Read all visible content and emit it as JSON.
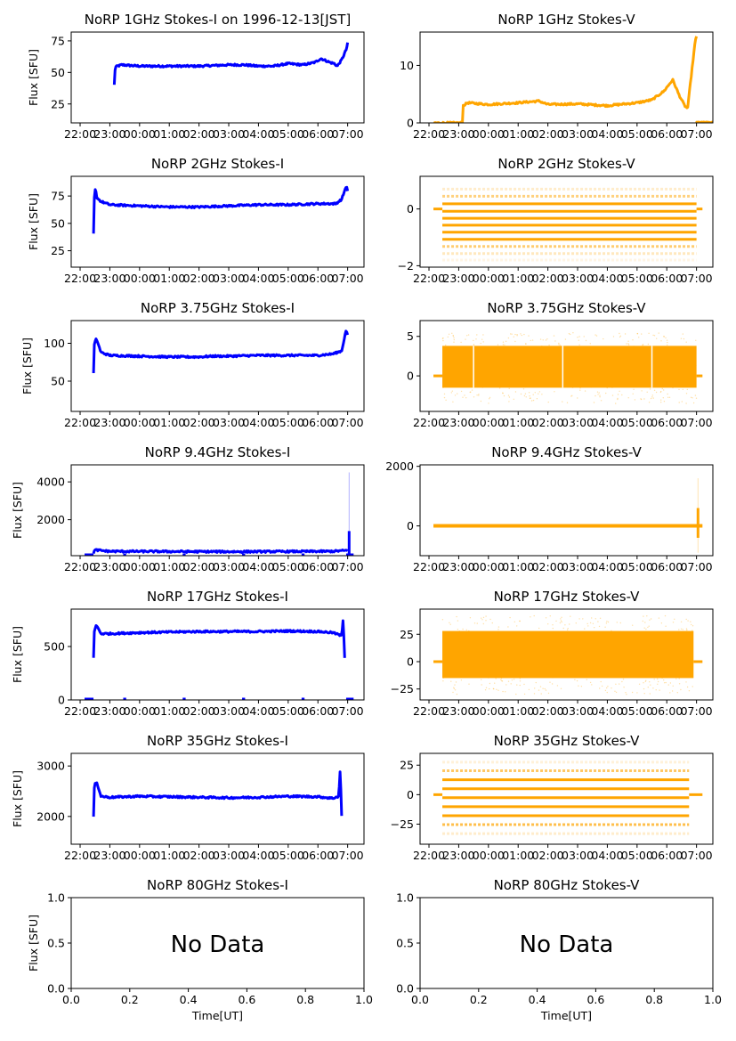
{
  "figure": {
    "background": "#ffffff",
    "colors": {
      "stokes_i": "#0000ff",
      "stokes_v": "#ffa500",
      "axis": "#000000"
    }
  },
  "chart_data": [
    {
      "id": "1ghz-i",
      "type": "scatter",
      "title": "NoRP 1GHz Stokes-I on 1996-12-13[JST]",
      "ylabel": "Flux [SFU]",
      "xlabel": "",
      "ylim": [
        10,
        82
      ],
      "yticks": [
        25,
        50,
        75
      ],
      "xticks": [
        "22:00",
        "23:00",
        "00:00",
        "01:00",
        "02:00",
        "03:00",
        "04:00",
        "05:00",
        "06:00",
        "07:00"
      ],
      "xrange_hours": [
        -0.3,
        9.55
      ],
      "series_color": "stokes_i",
      "series": [
        {
          "name": "Stokes-I",
          "x": [
            1.15,
            1.18,
            1.25,
            1.4,
            2,
            3,
            4,
            5,
            5.5,
            6,
            6.5,
            7,
            7.5,
            7.9,
            8.1,
            8.4,
            8.55,
            8.65,
            8.8,
            8.95,
            9.0
          ],
          "y": [
            40,
            54,
            55,
            56,
            55,
            55,
            55,
            56,
            56,
            55,
            55,
            57,
            56,
            58,
            61,
            58,
            57,
            55,
            60,
            68,
            73
          ]
        }
      ]
    },
    {
      "id": "1ghz-v",
      "type": "scatter",
      "title": "NoRP 1GHz Stokes-V",
      "ylabel": "",
      "xlabel": "",
      "ylim": [
        0,
        15.8
      ],
      "yticks": [
        0,
        10
      ],
      "xticks": [
        "22:00",
        "23:00",
        "00:00",
        "01:00",
        "02:00",
        "03:00",
        "04:00",
        "05:00",
        "06:00",
        "07:00"
      ],
      "xrange_hours": [
        -0.3,
        9.55
      ],
      "series_color": "stokes_v",
      "series": [
        {
          "name": "Stokes-V",
          "x": [
            0.15,
            1.15,
            1.15,
            1.3,
            2,
            3,
            3.7,
            4,
            5,
            6,
            7,
            7.5,
            7.9,
            8.2,
            8.4,
            8.6,
            8.7,
            8.95,
            9.0
          ],
          "y": [
            0,
            0,
            3,
            3.5,
            3.2,
            3.5,
            3.8,
            3.2,
            3.3,
            3,
            3.5,
            4,
            5.5,
            7.5,
            5,
            3,
            2.5,
            14,
            15
          ]
        },
        {
          "name": "Stokes-V-zero",
          "x": [
            9.0,
            9.3,
            9.6,
            9.9,
            10.2
          ],
          "y": [
            0,
            0,
            0,
            0,
            0
          ]
        }
      ]
    },
    {
      "id": "2ghz-i",
      "type": "scatter",
      "title": "NoRP 2GHz Stokes-I",
      "ylabel": "Flux [SFU]",
      "xlabel": "",
      "ylim": [
        10,
        93
      ],
      "yticks": [
        25,
        50,
        75
      ],
      "xticks": [
        "22:00",
        "23:00",
        "00:00",
        "01:00",
        "02:00",
        "03:00",
        "04:00",
        "05:00",
        "06:00",
        "07:00"
      ],
      "xrange_hours": [
        -0.3,
        9.55
      ],
      "series_color": "stokes_i",
      "series": [
        {
          "name": "Stokes-I",
          "x": [
            0.45,
            0.48,
            0.52,
            0.55,
            0.7,
            1,
            2,
            3,
            4,
            5,
            6,
            7,
            8,
            8.6,
            8.8,
            8.95,
            9.0
          ],
          "y": [
            40,
            75,
            83,
            74,
            70,
            67,
            66,
            65,
            65,
            66,
            67,
            67,
            68,
            68,
            72,
            84,
            80
          ]
        }
      ]
    },
    {
      "id": "2ghz-v",
      "type": "scatter",
      "title": "NoRP 2GHz Stokes-V",
      "ylabel": "",
      "xlabel": "",
      "ylim": [
        -2.05,
        1.15
      ],
      "yticks": [
        -2,
        0
      ],
      "xticks": [
        "22:00",
        "23:00",
        "00:00",
        "01:00",
        "02:00",
        "03:00",
        "04:00",
        "05:00",
        "06:00",
        "07:00"
      ],
      "xrange_hours": [
        -0.3,
        9.55
      ],
      "series_color": "stokes_v",
      "levels": [
        0.7,
        0.45,
        0.18,
        -0.08,
        -0.33,
        -0.57,
        -0.82,
        -1.07,
        -1.32,
        -1.57,
        -1.8
      ],
      "levels_strength": [
        0.2,
        0.5,
        1,
        1,
        1,
        1,
        1,
        1,
        0.55,
        0.25,
        0.1
      ],
      "data_span_hours": [
        0.45,
        9.0
      ],
      "flat_zero_span": [
        0.15,
        9.2
      ]
    },
    {
      "id": "375ghz-i",
      "type": "scatter",
      "title": "NoRP 3.75GHz Stokes-I",
      "ylabel": "Flux [SFU]",
      "xlabel": "",
      "ylim": [
        10,
        130
      ],
      "yticks": [
        50,
        100
      ],
      "xticks": [
        "22:00",
        "23:00",
        "00:00",
        "01:00",
        "02:00",
        "03:00",
        "04:00",
        "05:00",
        "06:00",
        "07:00"
      ],
      "xrange_hours": [
        -0.3,
        9.55
      ],
      "series_color": "stokes_i",
      "series": [
        {
          "name": "Stokes-I",
          "x": [
            0.45,
            0.48,
            0.55,
            0.7,
            1,
            2,
            3,
            4,
            4.5,
            5,
            6,
            7,
            8,
            8.5,
            8.8,
            8.95,
            9.0
          ],
          "y": [
            60,
            100,
            106,
            88,
            84,
            83,
            82,
            82,
            83,
            83,
            84,
            84,
            84,
            86,
            90,
            118,
            110
          ]
        }
      ]
    },
    {
      "id": "375ghz-v",
      "type": "scatter",
      "title": "NoRP 3.75GHz Stokes-V",
      "ylabel": "",
      "xlabel": "",
      "ylim": [
        -4.5,
        7
      ],
      "yticks": [
        0,
        5
      ],
      "xticks": [
        "22:00",
        "23:00",
        "00:00",
        "01:00",
        "02:00",
        "03:00",
        "04:00",
        "05:00",
        "06:00",
        "07:00"
      ],
      "xrange_hours": [
        -0.3,
        9.55
      ],
      "series_color": "stokes_v",
      "band": {
        "low": -1.5,
        "high": 3.8,
        "scatter_low": -3.5,
        "scatter_high": 5.5
      },
      "data_span_hours": [
        0.45,
        9.0
      ],
      "flat_zero_span": [
        0.15,
        9.2
      ],
      "gaps_hours": [
        1.5,
        4.5,
        7.5
      ]
    },
    {
      "id": "94ghz-i",
      "type": "scatter",
      "title": "NoRP 9.4GHz Stokes-I",
      "ylabel": "Flux [SFU]",
      "xlabel": "",
      "ylim": [
        100,
        4900
      ],
      "yticks": [
        2000,
        4000
      ],
      "xticks": [
        "22:00",
        "23:00",
        "00:00",
        "01:00",
        "02:00",
        "03:00",
        "04:00",
        "05:00",
        "06:00",
        "07:00"
      ],
      "xrange_hours": [
        -0.3,
        9.55
      ],
      "series_color": "stokes_i",
      "series": [
        {
          "name": "Stokes-I",
          "x": [
            0.45,
            0.5,
            1,
            3,
            5,
            7,
            8.5,
            9.0
          ],
          "y": [
            250,
            400,
            330,
            320,
            310,
            320,
            330,
            380
          ]
        }
      ],
      "spike": {
        "x": 9.05,
        "low": 100,
        "high": 4500,
        "dense_high": 1400
      }
    },
    {
      "id": "94ghz-v",
      "type": "scatter",
      "title": "NoRP 9.4GHz Stokes-V",
      "ylabel": "",
      "xlabel": "",
      "ylim": [
        -1000,
        2050
      ],
      "yticks": [
        0,
        2000
      ],
      "xticks": [
        "22:00",
        "23:00",
        "00:00",
        "01:00",
        "02:00",
        "03:00",
        "04:00",
        "05:00",
        "06:00",
        "07:00"
      ],
      "xrange_hours": [
        -0.3,
        9.55
      ],
      "series_color": "stokes_v",
      "data_span_hours": [
        0.15,
        9.2
      ],
      "spike": {
        "x": 9.05,
        "low": -900,
        "high": 1600,
        "dense_low": -400,
        "dense_high": 600
      }
    },
    {
      "id": "17ghz-i",
      "type": "scatter",
      "title": "NoRP 17GHz Stokes-I",
      "ylabel": "Flux [SFU]",
      "xlabel": "",
      "ylim": [
        0,
        850
      ],
      "yticks": [
        0,
        500
      ],
      "xticks": [
        "22:00",
        "23:00",
        "00:00",
        "01:00",
        "02:00",
        "03:00",
        "04:00",
        "05:00",
        "06:00",
        "07:00"
      ],
      "xrange_hours": [
        -0.3,
        9.55
      ],
      "series_color": "stokes_i",
      "series": [
        {
          "name": "Stokes-I",
          "x": [
            0.45,
            0.48,
            0.55,
            0.7,
            1,
            2,
            3,
            4,
            5,
            6,
            7,
            8,
            8.5,
            8.8,
            8.85,
            8.9
          ],
          "y": [
            400,
            650,
            700,
            620,
            620,
            630,
            635,
            640,
            640,
            640,
            645,
            640,
            630,
            600,
            770,
            400
          ]
        }
      ]
    },
    {
      "id": "17ghz-v",
      "type": "scatter",
      "title": "NoRP 17GHz Stokes-V",
      "ylabel": "",
      "xlabel": "",
      "ylim": [
        -35,
        48
      ],
      "yticks": [
        -25,
        0,
        25
      ],
      "xticks": [
        "22:00",
        "23:00",
        "00:00",
        "01:00",
        "02:00",
        "03:00",
        "04:00",
        "05:00",
        "06:00",
        "07:00"
      ],
      "xrange_hours": [
        -0.3,
        9.55
      ],
      "series_color": "stokes_v",
      "band": {
        "low": -15,
        "high": 28,
        "scatter_low": -30,
        "scatter_high": 42
      },
      "data_span_hours": [
        0.45,
        8.9
      ],
      "flat_zero_span": [
        0.15,
        9.2
      ],
      "gaps_hours": []
    },
    {
      "id": "35ghz-i",
      "type": "scatter",
      "title": "NoRP 35GHz Stokes-I",
      "ylabel": "Flux [SFU]",
      "xlabel": "",
      "ylim": [
        1450,
        3250
      ],
      "yticks": [
        2000,
        3000
      ],
      "xticks": [
        "22:00",
        "23:00",
        "00:00",
        "01:00",
        "02:00",
        "03:00",
        "04:00",
        "05:00",
        "06:00",
        "07:00"
      ],
      "xrange_hours": [
        -0.3,
        9.55
      ],
      "series_color": "stokes_i",
      "series": [
        {
          "name": "Stokes-I",
          "x": [
            0.45,
            0.48,
            0.55,
            0.7,
            1,
            2,
            3,
            4,
            5,
            6,
            7,
            8,
            8.5,
            8.7,
            8.75,
            8.8
          ],
          "y": [
            2000,
            2600,
            2700,
            2400,
            2380,
            2400,
            2390,
            2380,
            2370,
            2380,
            2400,
            2390,
            2360,
            2400,
            2950,
            2000
          ]
        }
      ]
    },
    {
      "id": "35ghz-v",
      "type": "scatter",
      "title": "NoRP 35GHz Stokes-V",
      "ylabel": "",
      "xlabel": "",
      "ylim": [
        -42,
        35
      ],
      "yticks": [
        -25,
        0,
        25
      ],
      "xticks": [
        "22:00",
        "23:00",
        "00:00",
        "01:00",
        "02:00",
        "03:00",
        "04:00",
        "05:00",
        "06:00",
        "07:00"
      ],
      "xrange_hours": [
        -0.3,
        9.55
      ],
      "series_color": "stokes_v",
      "levels": [
        27.5,
        20.3,
        12.6,
        5.0,
        -2.6,
        -10.2,
        -17.8,
        -25.4,
        -33
      ],
      "levels_strength": [
        0.15,
        0.6,
        1,
        1,
        1,
        1,
        1,
        0.7,
        0.2
      ],
      "data_span_hours": [
        0.45,
        8.75
      ],
      "flat_zero_span": [
        0.15,
        9.2
      ]
    },
    {
      "id": "80ghz-i",
      "type": "empty",
      "title": "NoRP 80GHz Stokes-I",
      "ylabel": "Flux [SFU]",
      "xlabel": "Time[UT]",
      "ylim": [
        0,
        1
      ],
      "xlim": [
        0,
        1
      ],
      "yticks": [
        "0.0",
        "0.5",
        "1.0"
      ],
      "xticks": [
        "0.0",
        "0.2",
        "0.4",
        "0.6",
        "0.8",
        "1.0"
      ],
      "annotation": "No Data"
    },
    {
      "id": "80ghz-v",
      "type": "empty",
      "title": "NoRP 80GHz Stokes-V",
      "ylabel": "",
      "xlabel": "Time[UT]",
      "ylim": [
        0,
        1
      ],
      "xlim": [
        0,
        1
      ],
      "yticks": [
        "0.0",
        "0.5",
        "1.0"
      ],
      "xticks": [
        "0.0",
        "0.2",
        "0.4",
        "0.6",
        "0.8",
        "1.0"
      ],
      "annotation": "No Data"
    }
  ]
}
